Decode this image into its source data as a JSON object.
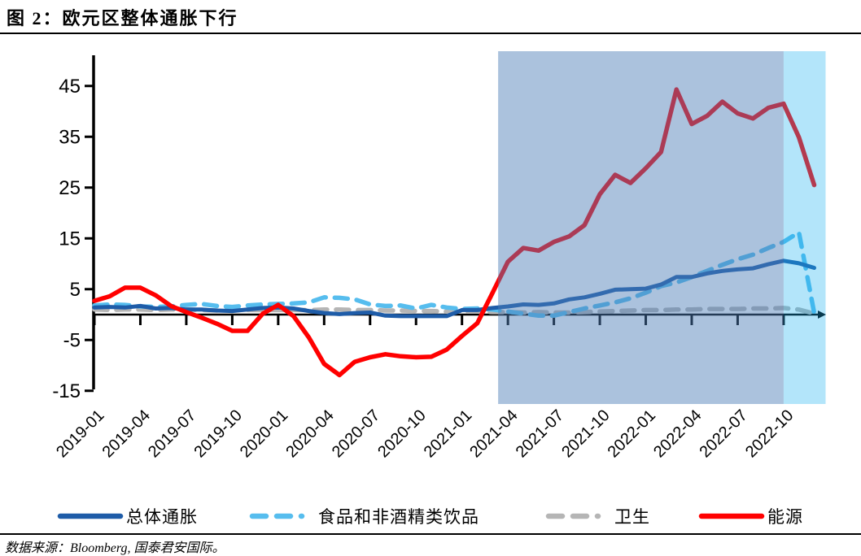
{
  "title": "图 2：欧元区整体通胀下行",
  "source": "数据来源：Bloomberg, 国泰君安国际。",
  "colors": {
    "overall_inflation": "#1E5CA8",
    "food_beverages": "#56BDEE",
    "health": "#B5B5B5",
    "energy": "#FF0000",
    "axis": "#000000",
    "highlight_main": "rgba(77,125,183,0.47)",
    "highlight_recent": "rgba(24,176,240,0.33)"
  },
  "legend": {
    "items": [
      {
        "label": "总体通胀",
        "color": "#1E5CA8",
        "style": "solid"
      },
      {
        "label": "食品和非酒精类饮品",
        "color": "#56BDEE",
        "style": "dashed"
      },
      {
        "label": "卫生",
        "color": "#B5B5B5",
        "style": "dashed"
      },
      {
        "label": "能源",
        "color": "#FF0000",
        "style": "solid"
      }
    ]
  },
  "chart_data": {
    "type": "line",
    "title": "图 2：欧元区整体通胀下行",
    "xlabel": "",
    "ylabel": "",
    "ylim": [
      -15,
      50
    ],
    "y_ticks": [
      45,
      35,
      25,
      15,
      5,
      -5,
      -15
    ],
    "x_tick_labels": [
      "2019-01",
      "2019-04",
      "2019-07",
      "2019-10",
      "2020-01",
      "2020-04",
      "2020-07",
      "2020-10",
      "2021-01",
      "2021-04",
      "2021-07",
      "2021-10",
      "2022-01",
      "2022-04",
      "2022-07",
      "2022-10"
    ],
    "grid": false,
    "legend_position": "bottom",
    "x": [
      "2019-01",
      "2019-02",
      "2019-03",
      "2019-04",
      "2019-05",
      "2019-06",
      "2019-07",
      "2019-08",
      "2019-09",
      "2019-10",
      "2019-11",
      "2019-12",
      "2020-01",
      "2020-02",
      "2020-03",
      "2020-04",
      "2020-05",
      "2020-06",
      "2020-07",
      "2020-08",
      "2020-09",
      "2020-10",
      "2020-11",
      "2020-12",
      "2021-01",
      "2021-02",
      "2021-03",
      "2021-04",
      "2021-05",
      "2021-06",
      "2021-07",
      "2021-08",
      "2021-09",
      "2021-10",
      "2021-11",
      "2021-12",
      "2022-01",
      "2022-02",
      "2022-03",
      "2022-04",
      "2022-05",
      "2022-06",
      "2022-07",
      "2022-08",
      "2022-09",
      "2022-10",
      "2022-11",
      "2022-12"
    ],
    "series": [
      {
        "name": "总体通胀",
        "color": "#1E5CA8",
        "width": 5,
        "dash": null,
        "values": [
          1.4,
          1.5,
          1.4,
          1.7,
          1.2,
          1.3,
          1.0,
          1.0,
          0.8,
          0.7,
          1.0,
          1.3,
          1.4,
          1.2,
          0.7,
          0.3,
          0.1,
          0.3,
          0.4,
          -0.2,
          -0.3,
          -0.3,
          -0.3,
          -0.3,
          0.9,
          0.9,
          1.3,
          1.6,
          2.0,
          1.9,
          2.2,
          3.0,
          3.4,
          4.1,
          4.9,
          5.0,
          5.1,
          5.9,
          7.4,
          7.4,
          8.1,
          8.6,
          8.9,
          9.1,
          9.9,
          10.6,
          10.1,
          9.2
        ]
      },
      {
        "name": "食品和非酒精类饮品",
        "color": "#56BDEE",
        "width": 5.5,
        "dash": "16 11",
        "values": [
          1.8,
          2.0,
          1.9,
          1.6,
          1.5,
          1.6,
          1.9,
          2.1,
          1.7,
          1.5,
          1.8,
          2.0,
          2.1,
          2.2,
          2.4,
          3.4,
          3.3,
          3.0,
          2.0,
          1.7,
          1.8,
          1.2,
          1.9,
          1.4,
          1.1,
          1.2,
          1.0,
          0.6,
          0.2,
          -0.2,
          -0.2,
          0.5,
          1.2,
          1.8,
          2.4,
          3.2,
          4.3,
          5.6,
          6.3,
          7.4,
          8.6,
          9.8,
          10.9,
          11.8,
          13.1,
          14.3,
          16.2,
          0.3
        ]
      },
      {
        "name": "卫生",
        "color": "#B5B5B5",
        "width": 5.5,
        "dash": "16 11",
        "values": [
          1.0,
          0.9,
          1.0,
          1.0,
          0.9,
          1.0,
          1.0,
          0.9,
          0.8,
          0.9,
          0.9,
          0.9,
          0.9,
          0.9,
          0.9,
          1.0,
          1.0,
          0.9,
          0.9,
          0.8,
          0.8,
          0.7,
          0.7,
          0.6,
          0.6,
          0.6,
          0.5,
          0.5,
          0.4,
          0.5,
          0.4,
          0.4,
          0.5,
          0.6,
          0.7,
          0.8,
          0.9,
          0.9,
          1.0,
          1.0,
          1.1,
          1.1,
          1.1,
          1.2,
          1.2,
          1.3,
          1.0,
          0.2
        ]
      },
      {
        "name": "能源",
        "color": "#FF0000",
        "width": 5.5,
        "dash": null,
        "values": [
          2.7,
          3.6,
          5.3,
          5.3,
          3.8,
          1.7,
          0.5,
          -0.6,
          -1.8,
          -3.2,
          -3.2,
          0.2,
          1.9,
          -0.3,
          -4.5,
          -9.7,
          -11.9,
          -9.3,
          -8.4,
          -7.8,
          -8.2,
          -8.4,
          -8.3,
          -6.9,
          -4.2,
          -1.7,
          4.3,
          10.4,
          13.1,
          12.6,
          14.3,
          15.4,
          17.6,
          23.7,
          27.5,
          25.9,
          28.8,
          32.0,
          44.3,
          37.5,
          39.1,
          41.9,
          39.6,
          38.6,
          40.7,
          41.5,
          34.9,
          25.5
        ]
      }
    ],
    "highlight_regions": [
      {
        "start": "2021-04",
        "end": "2022-10",
        "color": "rgba(77,125,183,0.47)"
      },
      {
        "start": "2022-10",
        "end": "2022-12",
        "color": "rgba(24,176,240,0.33)"
      }
    ]
  }
}
